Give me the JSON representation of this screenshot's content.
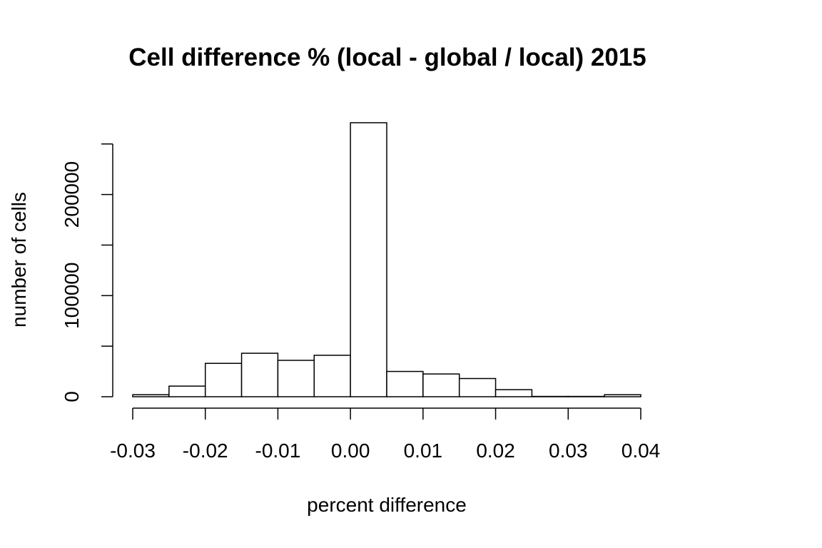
{
  "chart_data": {
    "type": "bar",
    "title": "Cell difference % (local - global / local) 2015",
    "xlabel": "percent difference",
    "ylabel": "number of cells",
    "bin_edges": [
      -0.03,
      -0.025,
      -0.02,
      -0.015,
      -0.01,
      -0.005,
      0.0,
      0.005,
      0.01,
      0.015,
      0.02,
      0.025,
      0.03,
      0.035,
      0.04
    ],
    "values": [
      2000,
      10500,
      33000,
      43000,
      36000,
      41000,
      271000,
      25000,
      22500,
      18000,
      7000,
      300,
      300,
      2000
    ],
    "xlim": [
      -0.03,
      0.04
    ],
    "ylim": [
      0,
      271000
    ],
    "x_ticks": [
      -0.03,
      -0.02,
      -0.01,
      0.0,
      0.01,
      0.02,
      0.03,
      0.04
    ],
    "x_tick_labels": [
      "-0.03",
      "-0.02",
      "-0.01",
      "0.00",
      "0.01",
      "0.02",
      "0.03",
      "0.04"
    ],
    "y_ticks": [
      0,
      50000,
      100000,
      150000,
      200000,
      250000
    ],
    "y_tick_labels": [
      "0",
      "",
      "100000",
      "",
      "200000",
      ""
    ],
    "grid": false
  }
}
